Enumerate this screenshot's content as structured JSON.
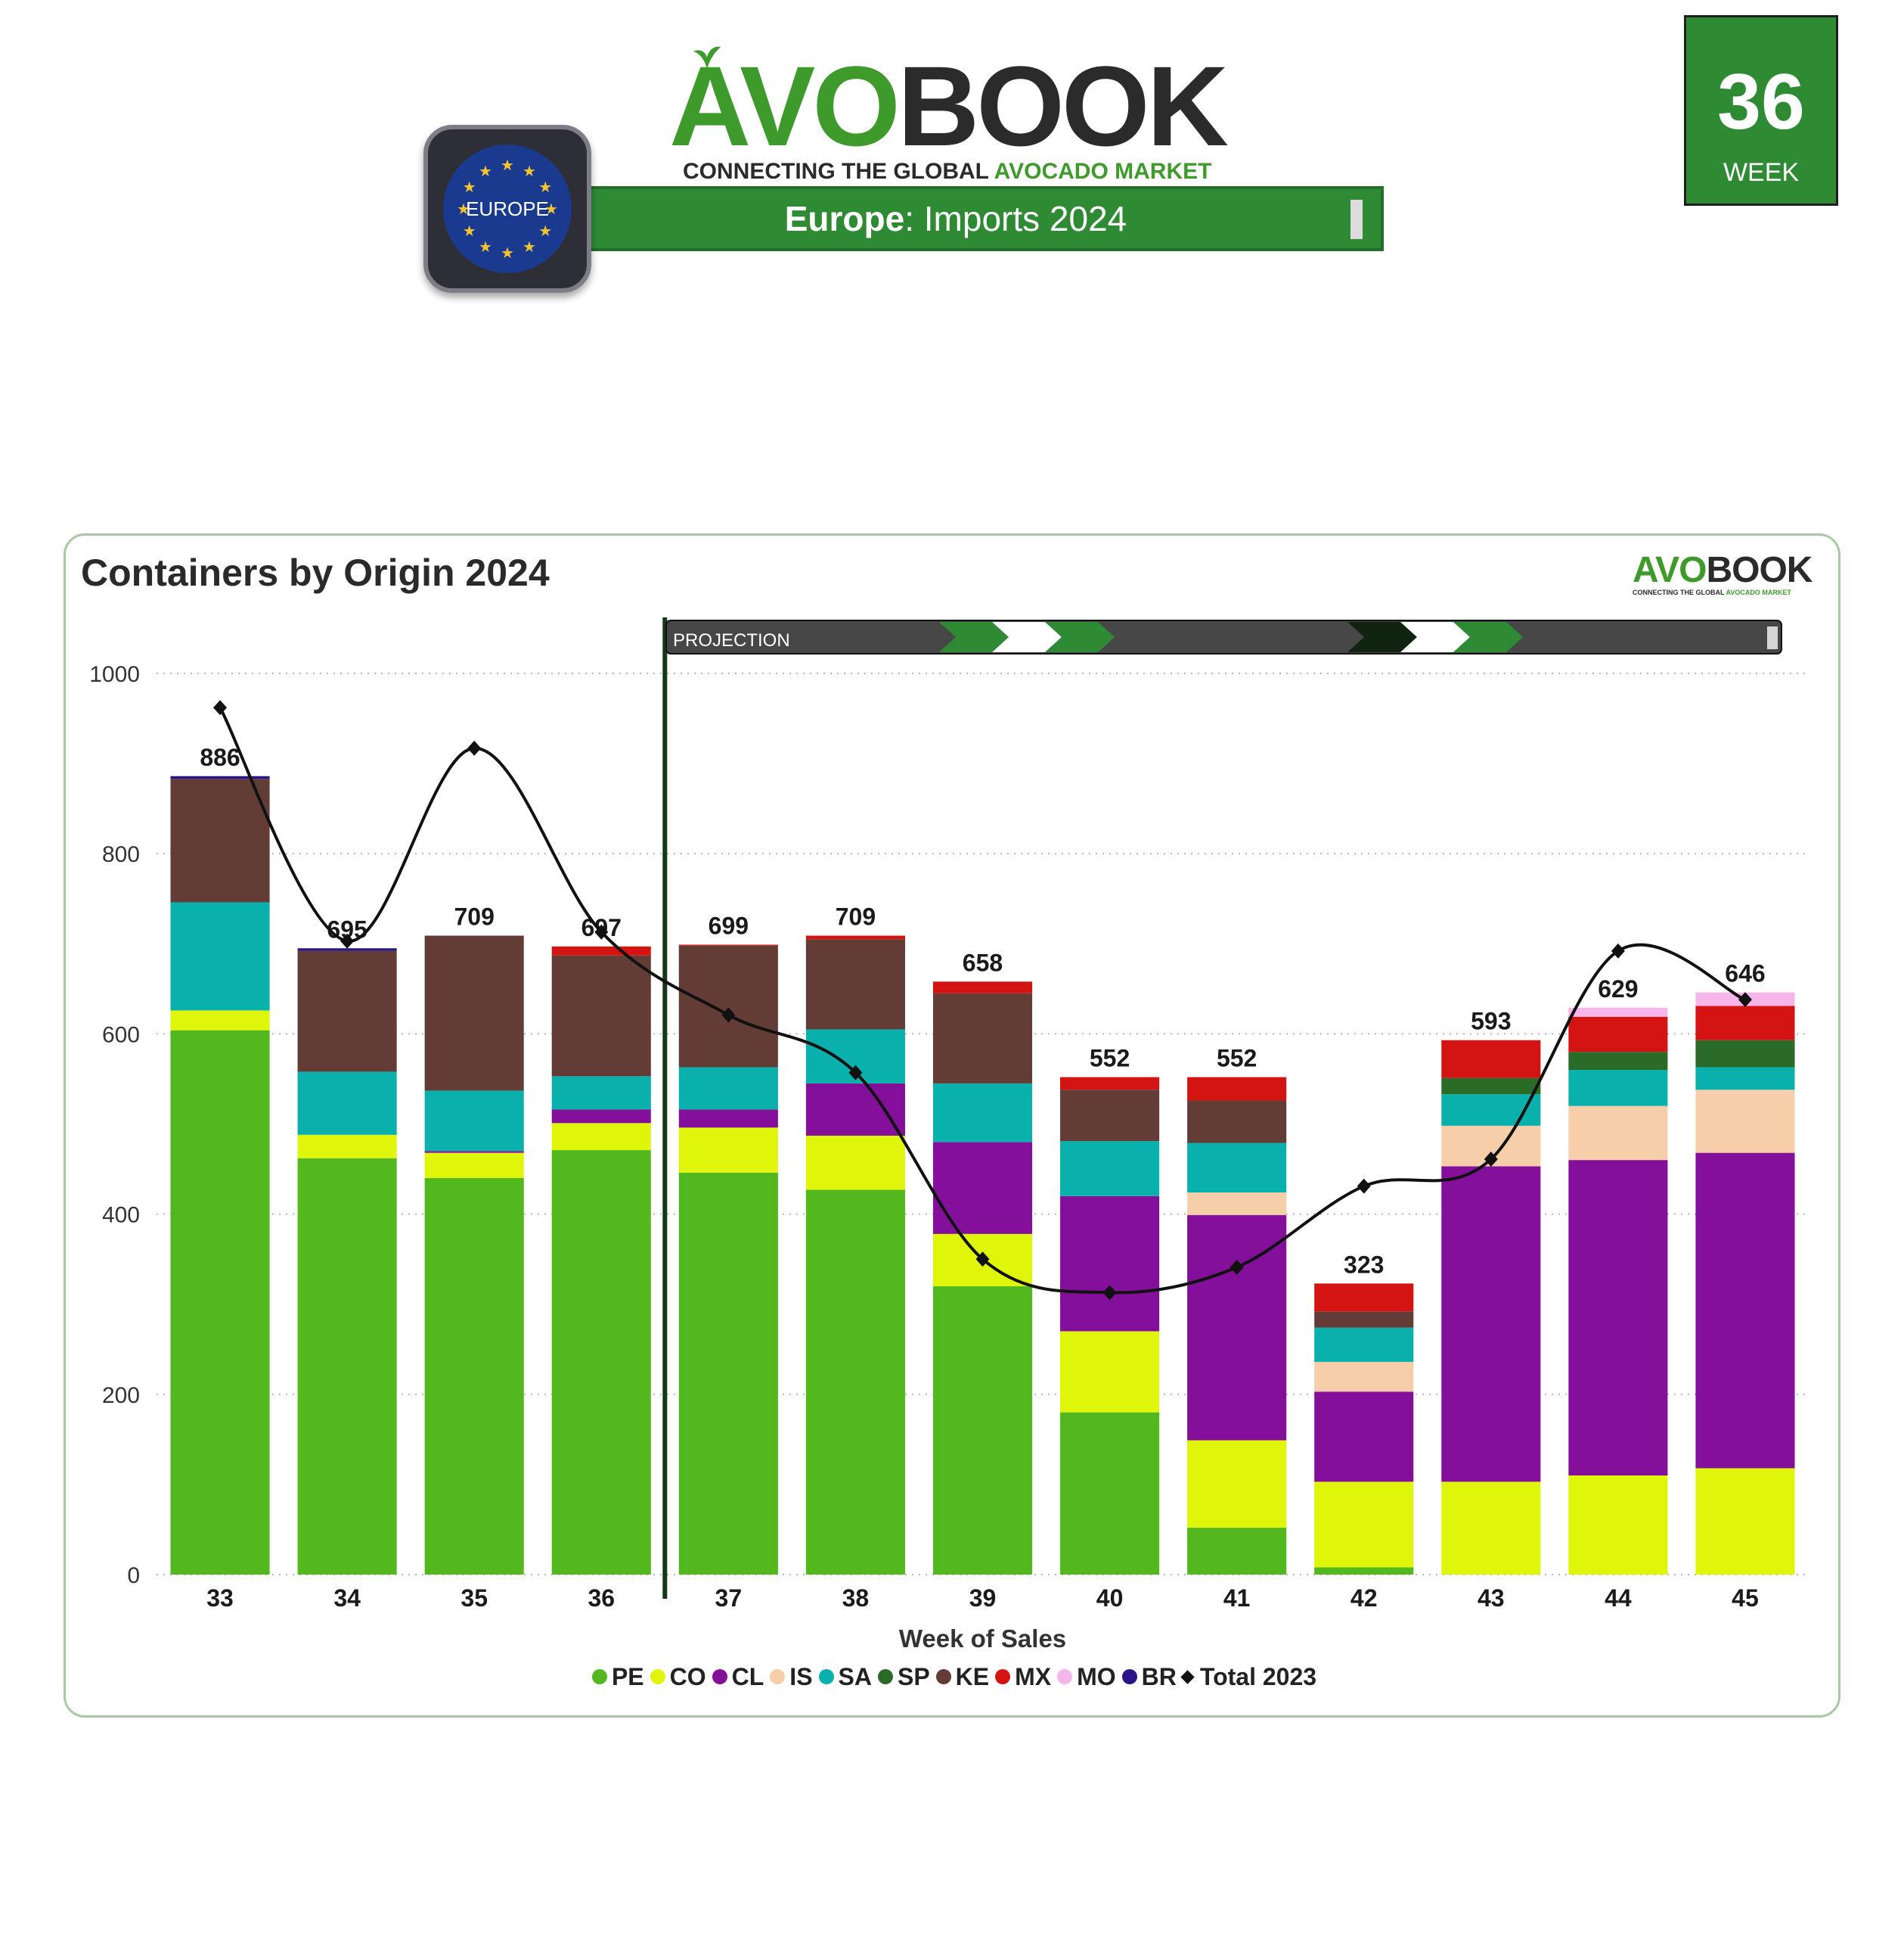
{
  "header": {
    "logo_brand_avo": "AVO",
    "logo_brand_book": "BOOK",
    "logo_tagline_a": "CONNECTING THE GLOBAL ",
    "logo_tagline_b": "AVOCADO MARKET",
    "region_badge": "EUROPE",
    "subtitle_region": "Europe",
    "subtitle_rest": ": Imports 2024",
    "week_number": "36",
    "week_label": "WEEK"
  },
  "card": {
    "mini_logo_avo": "AVO",
    "mini_logo_book": "BOOK",
    "mini_tag_a": "CONNECTING THE GLOBAL ",
    "mini_tag_b": "AVOCADO MARKET",
    "projection_label": "PROJECTION"
  },
  "colors": {
    "PE": "#52b81e",
    "CO": "#dff50a",
    "CL": "#830f9a",
    "IS": "#f6ceaa",
    "SA": "#0ab0ac",
    "SP": "#2a6b28",
    "KE": "#643c36",
    "MX": "#d41313",
    "MO": "#f6b6ea",
    "BR": "#2a1588",
    "line": "#111111",
    "brand_green": "#2f8a34"
  },
  "chart_data": {
    "type": "bar",
    "stacked": true,
    "title": "Containers by Origin 2024",
    "xlabel": "Week of Sales",
    "ylabel": "",
    "ylim": [
      0,
      1000
    ],
    "yticks": [
      0,
      200,
      400,
      600,
      800,
      1000
    ],
    "grid": "horizontal-dotted",
    "legend_position": "bottom",
    "projection_start_after": "36",
    "categories": [
      "33",
      "34",
      "35",
      "36",
      "37",
      "38",
      "39",
      "40",
      "41",
      "42",
      "43",
      "44",
      "45"
    ],
    "series": [
      {
        "name": "PE",
        "values": [
          604,
          462,
          440,
          471,
          446,
          427,
          320,
          180,
          52,
          8,
          0,
          0,
          0
        ]
      },
      {
        "name": "CO",
        "values": [
          22,
          26,
          28,
          30,
          50,
          60,
          58,
          90,
          97,
          95,
          103,
          110,
          118
        ]
      },
      {
        "name": "CL",
        "values": [
          0,
          0,
          2,
          15,
          20,
          58,
          102,
          150,
          250,
          100,
          350,
          350,
          350
        ]
      },
      {
        "name": "IS",
        "values": [
          0,
          0,
          0,
          0,
          0,
          0,
          0,
          0,
          25,
          33,
          45,
          60,
          70
        ]
      },
      {
        "name": "SA",
        "values": [
          120,
          70,
          67,
          37,
          47,
          60,
          65,
          61,
          55,
          38,
          35,
          40,
          25
        ]
      },
      {
        "name": "SP",
        "values": [
          0,
          0,
          0,
          0,
          0,
          0,
          0,
          0,
          0,
          0,
          18,
          20,
          30
        ]
      },
      {
        "name": "KE",
        "values": [
          137,
          134,
          172,
          134,
          135,
          100,
          100,
          57,
          47,
          18,
          0,
          0,
          0
        ]
      },
      {
        "name": "MX",
        "values": [
          0,
          0,
          0,
          10,
          1,
          4,
          13,
          14,
          26,
          31,
          42,
          39,
          38
        ]
      },
      {
        "name": "MO",
        "values": [
          0,
          0,
          0,
          0,
          0,
          0,
          0,
          0,
          0,
          0,
          0,
          10,
          15
        ]
      },
      {
        "name": "BR",
        "values": [
          3,
          3,
          0,
          0,
          0,
          0,
          0,
          0,
          0,
          0,
          0,
          0,
          0
        ]
      }
    ],
    "totals": [
      886,
      695,
      709,
      697,
      699,
      709,
      658,
      552,
      552,
      323,
      593,
      629,
      646
    ],
    "line_series": {
      "name": "Total 2023",
      "values": [
        962,
        703,
        917,
        713,
        621,
        557,
        350,
        313,
        341,
        431,
        461,
        692,
        638
      ]
    }
  }
}
